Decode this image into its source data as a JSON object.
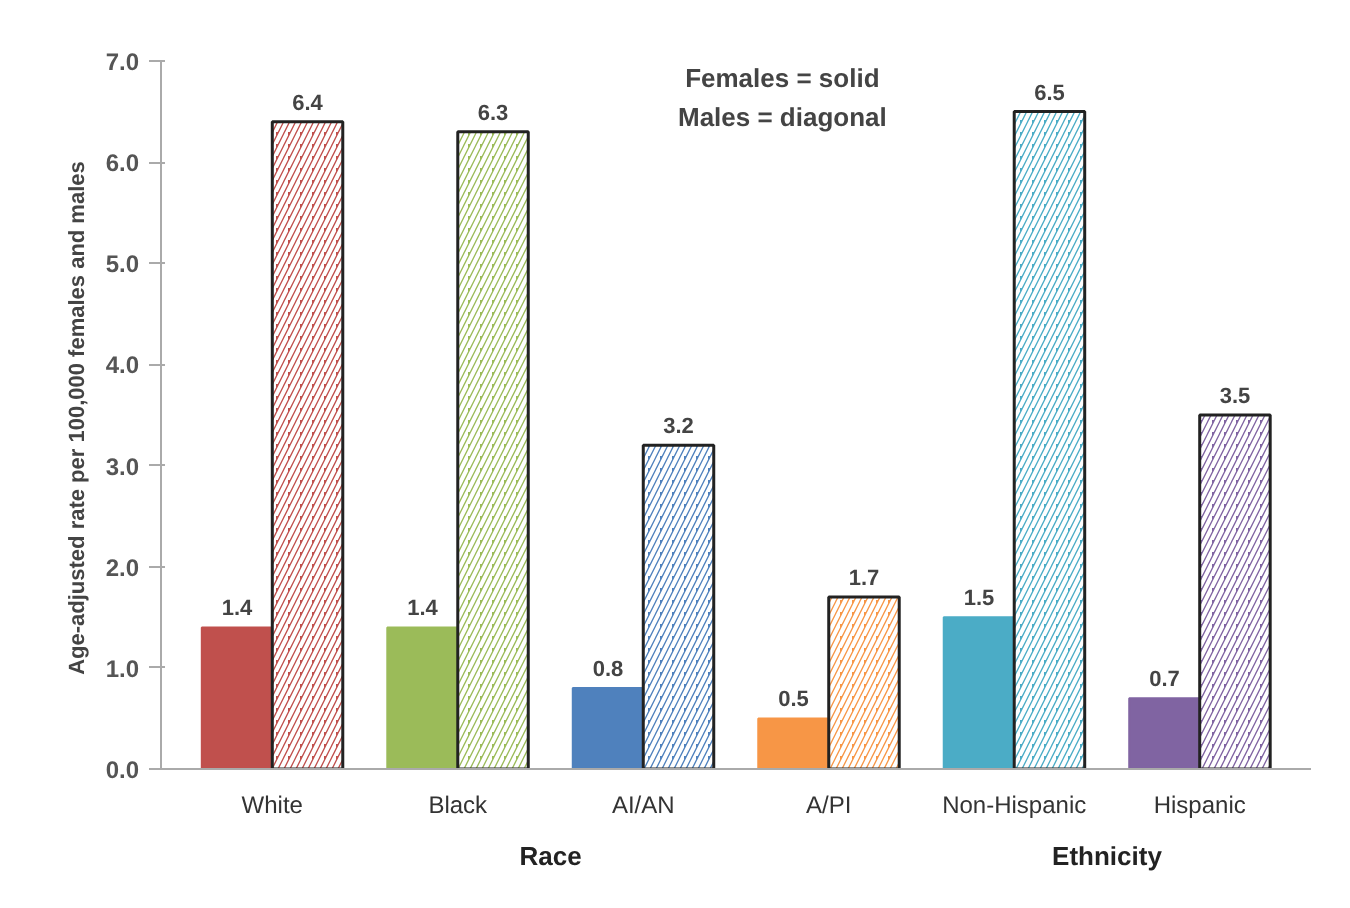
{
  "chart_data": {
    "type": "bar",
    "ylabel": "Age-adjusted rate per 100,000 females and  males",
    "categories": [
      "White",
      "Black",
      "AI/AN",
      "A/PI",
      "Non-Hispanic",
      "Hispanic"
    ],
    "series": [
      {
        "colors": [
          "#c0504d",
          "#9bbb59",
          "#4f81bd",
          "#f79646",
          "#4bacc6",
          "#8064a2"
        ],
        "values": [
          1.4,
          1.4,
          0.8,
          0.5,
          1.5,
          0.7
        ]
      },
      {
        "colors": [
          "#c0504d",
          "#9bbb59",
          "#4f81bd",
          "#f79646",
          "#4bacc6",
          "#8064a2"
        ],
        "values": [
          6.4,
          6.3,
          3.2,
          1.7,
          6.5,
          3.5
        ]
      }
    ],
    "ylim": [
      0,
      7
    ],
    "yticks": [
      {
        "value": 0,
        "label": "0.0"
      },
      {
        "value": 1,
        "label": "1.0"
      },
      {
        "value": 2,
        "label": "2.0"
      },
      {
        "value": 3,
        "label": "3.0"
      },
      {
        "value": 4,
        "label": "4.0"
      },
      {
        "value": 5,
        "label": "5.0"
      },
      {
        "value": 6,
        "label": "6.0"
      },
      {
        "value": 7,
        "label": "7.0"
      }
    ],
    "data_labels": true,
    "grid": false,
    "annotations": [
      "Females = solid\nMales = diagonal",
      "Race",
      "Ethnicity"
    ]
  }
}
